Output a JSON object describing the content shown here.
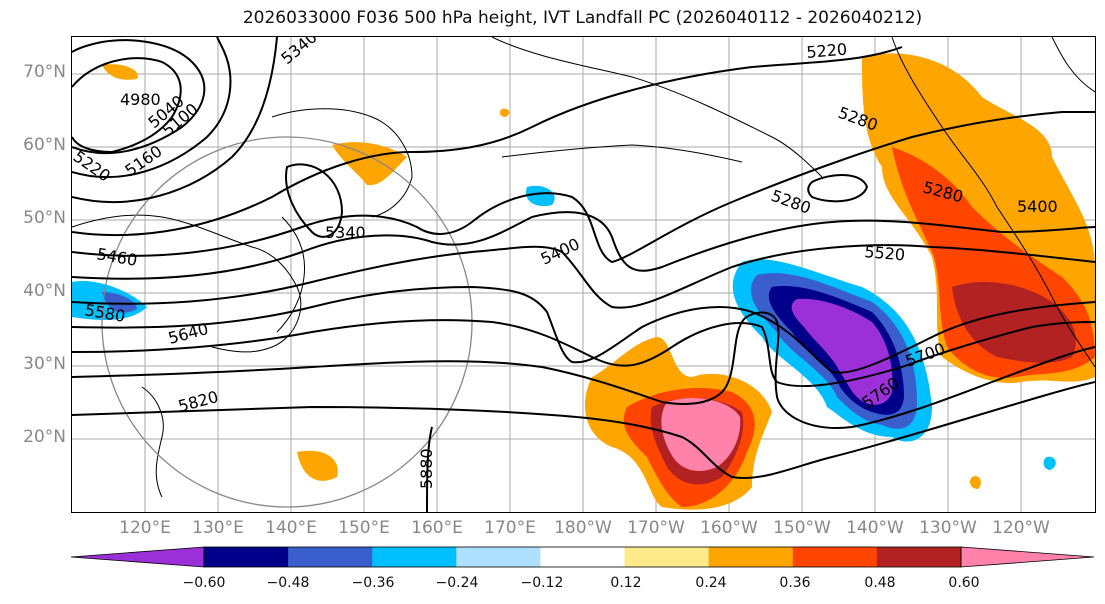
{
  "title": "2026033000 F036 500 hPa height, IVT Landfall PC (2026040112 - 2026040212)",
  "lat_labels": [
    "70°N",
    "60°N",
    "50°N",
    "40°N",
    "30°N",
    "20°N"
  ],
  "lon_labels": [
    "120°E",
    "130°E",
    "140°E",
    "150°E",
    "160°E",
    "170°E",
    "180°W",
    "170°W",
    "160°W",
    "150°W",
    "140°W",
    "130°W",
    "120°W"
  ],
  "contour_labels": [
    "4980",
    "5040",
    "5100",
    "5160",
    "5220",
    "5220",
    "5280",
    "5280",
    "5340",
    "5400",
    "5400",
    "5460",
    "5520",
    "5580",
    "5640",
    "5700",
    "5760",
    "5820",
    "5880",
    "5280",
    "5340"
  ],
  "colorbar": {
    "ticks": [
      "−0.60",
      "−0.48",
      "−0.36",
      "−0.24",
      "−0.12",
      "0.12",
      "0.24",
      "0.36",
      "0.48",
      "0.60"
    ],
    "colors": [
      "#9b30d9",
      "#00008b",
      "#3a5fcd",
      "#00bfff",
      "#b0e0ff",
      "#ffffff",
      "#ffea8a",
      "#ffa500",
      "#ff4500",
      "#b22222",
      "#ff82ab"
    ]
  }
}
